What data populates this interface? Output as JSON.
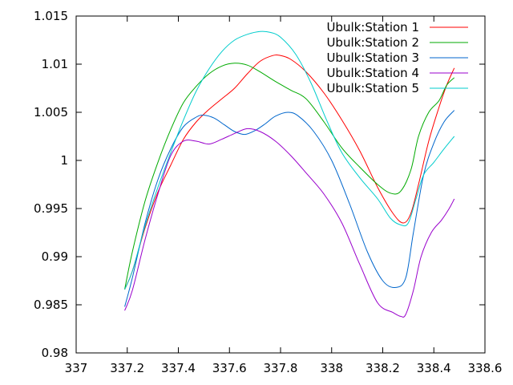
{
  "chart_data": {
    "type": "line",
    "title": "",
    "xlabel": "",
    "ylabel": "",
    "xlim": [
      337,
      338.6
    ],
    "ylim": [
      0.98,
      1.015
    ],
    "xticks": [
      337,
      337.2,
      337.4,
      337.6,
      337.8,
      338,
      338.2,
      338.4,
      338.6
    ],
    "xtick_labels": [
      "337",
      "337.2",
      "337.4",
      "337.6",
      "337.8",
      "338",
      "338.2",
      "338.4",
      "338.6"
    ],
    "yticks": [
      0.98,
      0.985,
      0.99,
      0.995,
      1.0,
      1.005,
      1.01,
      1.015
    ],
    "ytick_labels": [
      "0.98",
      "0.985",
      "0.99",
      "0.995",
      "1",
      "1.005",
      "1.01",
      "1.015"
    ],
    "grid": false,
    "legend": "top-right",
    "series": [
      {
        "name": "Ubulk:Station 1",
        "color": "#ff0000",
        "x": [
          337.19,
          337.22,
          337.27,
          337.32,
          337.37,
          337.42,
          337.47,
          337.52,
          337.57,
          337.62,
          337.67,
          337.72,
          337.77,
          337.8,
          337.84,
          337.9,
          337.97,
          338.04,
          338.11,
          338.18,
          338.24,
          338.28,
          338.31,
          338.34,
          338.38,
          338.42,
          338.45,
          338.48
        ],
        "y": [
          0.9866,
          0.9885,
          0.993,
          0.9967,
          0.9995,
          1.0022,
          1.004,
          1.0053,
          1.0064,
          1.0075,
          1.009,
          1.0103,
          1.0109,
          1.0109,
          1.0105,
          1.0092,
          1.007,
          1.0042,
          1.001,
          0.9972,
          0.9945,
          0.9935,
          0.9945,
          0.9975,
          1.002,
          1.0055,
          1.0078,
          1.0096
        ]
      },
      {
        "name": "Ubulk:Station 2",
        "color": "#00aa00",
        "x": [
          337.19,
          337.22,
          337.27,
          337.32,
          337.37,
          337.42,
          337.47,
          337.52,
          337.57,
          337.62,
          337.67,
          337.72,
          337.78,
          337.84,
          337.9,
          337.97,
          338.04,
          338.11,
          338.18,
          338.23,
          338.27,
          338.31,
          338.34,
          338.38,
          338.42,
          338.45,
          338.48
        ],
        "y": [
          0.9866,
          0.9905,
          0.9958,
          0.9998,
          1.0032,
          1.006,
          1.0077,
          1.009,
          1.0098,
          1.0101,
          1.0099,
          1.0092,
          1.0082,
          1.0073,
          1.0064,
          1.004,
          1.0013,
          0.9993,
          0.9975,
          0.9966,
          0.9968,
          0.999,
          1.0025,
          1.005,
          1.0062,
          1.0078,
          1.0086
        ]
      },
      {
        "name": "Ubulk:Station 3",
        "color": "#0066cc",
        "x": [
          337.19,
          337.22,
          337.27,
          337.32,
          337.37,
          337.42,
          337.47,
          337.5,
          337.54,
          337.58,
          337.62,
          337.66,
          337.7,
          337.74,
          337.78,
          337.83,
          337.87,
          337.93,
          338.0,
          338.07,
          338.14,
          338.2,
          338.25,
          338.29,
          338.32,
          338.36,
          338.4,
          338.44,
          338.48
        ],
        "y": [
          0.9848,
          0.9878,
          0.9935,
          0.998,
          1.0012,
          1.0035,
          1.0045,
          1.0047,
          1.0044,
          1.0037,
          1.003,
          1.0027,
          1.0031,
          1.0038,
          1.0046,
          1.005,
          1.0046,
          1.003,
          1.0,
          0.9955,
          0.9905,
          0.9875,
          0.9868,
          0.9878,
          0.9925,
          0.9985,
          1.0018,
          1.004,
          1.0052
        ]
      },
      {
        "name": "Ubulk:Station 4",
        "color": "#9900cc",
        "x": [
          337.19,
          337.22,
          337.27,
          337.32,
          337.37,
          337.42,
          337.47,
          337.52,
          337.57,
          337.62,
          337.67,
          337.72,
          337.78,
          337.84,
          337.9,
          337.97,
          338.04,
          338.11,
          338.18,
          338.24,
          338.27,
          338.29,
          338.32,
          338.35,
          338.39,
          338.43,
          338.46,
          338.48
        ],
        "y": [
          0.9844,
          0.9865,
          0.9918,
          0.9965,
          1.0005,
          1.002,
          1.002,
          1.0017,
          1.0022,
          1.0028,
          1.0033,
          1.003,
          1.002,
          1.0005,
          0.9987,
          0.9965,
          0.9935,
          0.9892,
          0.9852,
          0.9842,
          0.9838,
          0.984,
          0.9865,
          0.99,
          0.9925,
          0.9938,
          0.995,
          0.996
        ]
      },
      {
        "name": "Ubulk:Station 5",
        "color": "#00cccc",
        "x": [
          337.19,
          337.22,
          337.27,
          337.32,
          337.37,
          337.42,
          337.47,
          337.52,
          337.57,
          337.62,
          337.67,
          337.72,
          337.76,
          337.8,
          337.86,
          337.92,
          337.98,
          338.04,
          338.11,
          338.18,
          338.23,
          338.27,
          338.3,
          338.33,
          338.36,
          338.4,
          338.44,
          338.48
        ],
        "y": [
          0.9866,
          0.9885,
          0.9932,
          0.9972,
          1.0008,
          1.0042,
          1.0072,
          1.0095,
          1.0113,
          1.0125,
          1.0131,
          1.0134,
          1.0133,
          1.0128,
          1.011,
          1.008,
          1.0042,
          1.0008,
          0.9982,
          0.996,
          0.994,
          0.9933,
          0.9935,
          0.996,
          0.9985,
          0.9998,
          1.0012,
          1.0025
        ]
      }
    ]
  }
}
